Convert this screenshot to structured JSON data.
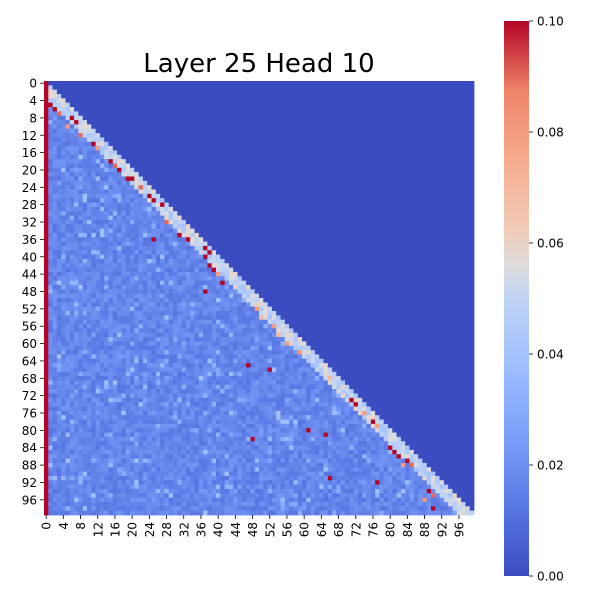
{
  "chart_data": {
    "type": "heatmap",
    "title": "Layer 25 Head 10",
    "xlabel": "",
    "ylabel": "",
    "n": 100,
    "tick_labels": [
      "0",
      "4",
      "8",
      "12",
      "16",
      "20",
      "24",
      "28",
      "32",
      "36",
      "40",
      "44",
      "48",
      "52",
      "56",
      "60",
      "64",
      "68",
      "72",
      "76",
      "80",
      "84",
      "88",
      "92",
      "96"
    ],
    "colorbar": {
      "min": 0.0,
      "max": 0.1,
      "tick_labels": [
        "0.00",
        "0.02",
        "0.04",
        "0.06",
        "0.08",
        "0.10"
      ],
      "colormap": "coolwarm"
    },
    "mask": "upper-triangle (key > query) shows baseline value 0",
    "baseline_value": 0.0,
    "first_column_value": 0.1,
    "lower_triangle_background_value": 0.012,
    "diagonal_band_value": 0.04,
    "notable_cells": [
      {
        "row": 5,
        "col": 1,
        "value": 0.1
      },
      {
        "row": 6,
        "col": 2,
        "value": 0.1
      },
      {
        "row": 7,
        "col": 3,
        "value": 0.09
      },
      {
        "row": 8,
        "col": 6,
        "value": 0.1
      },
      {
        "row": 9,
        "col": 7,
        "value": 0.1
      },
      {
        "row": 10,
        "col": 5,
        "value": 0.08
      },
      {
        "row": 12,
        "col": 8,
        "value": 0.09
      },
      {
        "row": 14,
        "col": 11,
        "value": 0.1
      },
      {
        "row": 15,
        "col": 12,
        "value": 0.08
      },
      {
        "row": 18,
        "col": 15,
        "value": 0.1
      },
      {
        "row": 19,
        "col": 16,
        "value": 0.09
      },
      {
        "row": 20,
        "col": 17,
        "value": 0.1
      },
      {
        "row": 22,
        "col": 19,
        "value": 0.1
      },
      {
        "row": 22,
        "col": 20,
        "value": 0.1
      },
      {
        "row": 24,
        "col": 22,
        "value": 0.09
      },
      {
        "row": 26,
        "col": 24,
        "value": 0.1
      },
      {
        "row": 27,
        "col": 25,
        "value": 0.1
      },
      {
        "row": 28,
        "col": 27,
        "value": 0.1
      },
      {
        "row": 32,
        "col": 28,
        "value": 0.09
      },
      {
        "row": 35,
        "col": 31,
        "value": 0.1
      },
      {
        "row": 36,
        "col": 33,
        "value": 0.1
      },
      {
        "row": 36,
        "col": 25,
        "value": 0.1
      },
      {
        "row": 38,
        "col": 37,
        "value": 0.1
      },
      {
        "row": 39,
        "col": 38,
        "value": 0.1
      },
      {
        "row": 40,
        "col": 37,
        "value": 0.1
      },
      {
        "row": 42,
        "col": 38,
        "value": 0.1
      },
      {
        "row": 43,
        "col": 39,
        "value": 0.1
      },
      {
        "row": 44,
        "col": 40,
        "value": 0.08
      },
      {
        "row": 46,
        "col": 41,
        "value": 0.1
      },
      {
        "row": 48,
        "col": 37,
        "value": 0.1
      },
      {
        "row": 52,
        "col": 49,
        "value": 0.08
      },
      {
        "row": 54,
        "col": 50,
        "value": 0.07
      },
      {
        "row": 56,
        "col": 53,
        "value": 0.08
      },
      {
        "row": 58,
        "col": 54,
        "value": 0.07
      },
      {
        "row": 60,
        "col": 56,
        "value": 0.08
      },
      {
        "row": 62,
        "col": 59,
        "value": 0.08
      },
      {
        "row": 65,
        "col": 47,
        "value": 0.1
      },
      {
        "row": 66,
        "col": 52,
        "value": 0.1
      },
      {
        "row": 68,
        "col": 66,
        "value": 0.07
      },
      {
        "row": 73,
        "col": 71,
        "value": 0.1
      },
      {
        "row": 74,
        "col": 72,
        "value": 0.1
      },
      {
        "row": 76,
        "col": 74,
        "value": 0.08
      },
      {
        "row": 78,
        "col": 76,
        "value": 0.1
      },
      {
        "row": 79,
        "col": 77,
        "value": 0.08
      },
      {
        "row": 80,
        "col": 61,
        "value": 0.1
      },
      {
        "row": 81,
        "col": 65,
        "value": 0.1
      },
      {
        "row": 82,
        "col": 48,
        "value": 0.1
      },
      {
        "row": 84,
        "col": 80,
        "value": 0.1
      },
      {
        "row": 85,
        "col": 81,
        "value": 0.1
      },
      {
        "row": 86,
        "col": 82,
        "value": 0.1
      },
      {
        "row": 87,
        "col": 84,
        "value": 0.1
      },
      {
        "row": 88,
        "col": 83,
        "value": 0.08
      },
      {
        "row": 88,
        "col": 85,
        "value": 0.09
      },
      {
        "row": 91,
        "col": 66,
        "value": 0.1
      },
      {
        "row": 92,
        "col": 77,
        "value": 0.1
      },
      {
        "row": 94,
        "col": 89,
        "value": 0.1
      },
      {
        "row": 95,
        "col": 90,
        "value": 0.09
      },
      {
        "row": 96,
        "col": 88,
        "value": 0.08
      },
      {
        "row": 98,
        "col": 90,
        "value": 0.1
      }
    ]
  }
}
